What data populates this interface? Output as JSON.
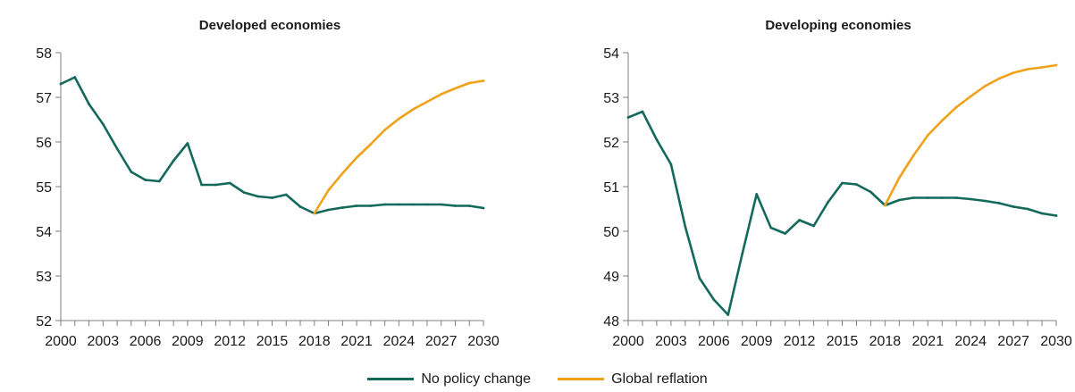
{
  "colors": {
    "no_policy_change": "#13695b",
    "global_reflation": "#f0a21b"
  },
  "legend": [
    {
      "key": "no_policy_change",
      "label": "No policy change"
    },
    {
      "key": "global_reflation",
      "label": "Global reflation"
    }
  ],
  "chart_data": [
    {
      "type": "line",
      "title": "Developed economies",
      "xlabel": "",
      "ylabel": "",
      "xlim": [
        2000,
        2030
      ],
      "ylim": [
        52,
        58
      ],
      "x_ticks": [
        2000,
        2003,
        2006,
        2009,
        2012,
        2015,
        2018,
        2021,
        2024,
        2027,
        2030
      ],
      "y_ticks": [
        52,
        53,
        54,
        55,
        56,
        57,
        58
      ],
      "grid": false,
      "legend_position": "bottom",
      "series": [
        {
          "name": "No policy change",
          "key": "no_policy_change",
          "x": [
            2000,
            2001,
            2002,
            2003,
            2004,
            2005,
            2006,
            2007,
            2008,
            2009,
            2010,
            2011,
            2012,
            2013,
            2014,
            2015,
            2016,
            2017,
            2018,
            2019,
            2020,
            2021,
            2022,
            2023,
            2024,
            2025,
            2026,
            2027,
            2028,
            2029,
            2030
          ],
          "values": [
            57.3,
            57.45,
            56.85,
            56.4,
            55.85,
            55.33,
            55.15,
            55.12,
            55.58,
            55.97,
            55.04,
            55.04,
            55.08,
            54.87,
            54.78,
            54.75,
            54.82,
            54.55,
            54.4,
            54.48,
            54.53,
            54.57,
            54.57,
            54.6,
            54.6,
            54.6,
            54.6,
            54.6,
            54.57,
            54.57,
            54.52
          ]
        },
        {
          "name": "Global reflation",
          "key": "global_reflation",
          "x": [
            2018,
            2019,
            2020,
            2021,
            2022,
            2023,
            2024,
            2025,
            2026,
            2027,
            2028,
            2029,
            2030
          ],
          "values": [
            54.4,
            54.92,
            55.3,
            55.65,
            55.95,
            56.27,
            56.52,
            56.73,
            56.9,
            57.07,
            57.2,
            57.32,
            57.37
          ]
        }
      ]
    },
    {
      "type": "line",
      "title": "Developing economies",
      "xlabel": "",
      "ylabel": "",
      "xlim": [
        2000,
        2030
      ],
      "ylim": [
        48,
        54
      ],
      "x_ticks": [
        2000,
        2003,
        2006,
        2009,
        2012,
        2015,
        2018,
        2021,
        2024,
        2027,
        2030
      ],
      "y_ticks": [
        48,
        49,
        50,
        51,
        52,
        53,
        54
      ],
      "grid": false,
      "legend_position": "bottom",
      "series": [
        {
          "name": "No policy change",
          "key": "no_policy_change",
          "x": [
            2000,
            2001,
            2002,
            2003,
            2004,
            2005,
            2006,
            2007,
            2008,
            2009,
            2010,
            2011,
            2012,
            2013,
            2014,
            2015,
            2016,
            2017,
            2018,
            2019,
            2020,
            2021,
            2022,
            2023,
            2024,
            2025,
            2026,
            2027,
            2028,
            2029,
            2030
          ],
          "values": [
            52.55,
            52.68,
            52.05,
            51.5,
            50.1,
            48.95,
            48.47,
            48.13,
            49.5,
            50.83,
            50.08,
            49.95,
            50.25,
            50.12,
            50.65,
            51.08,
            51.05,
            50.88,
            50.58,
            50.7,
            50.75,
            50.75,
            50.75,
            50.75,
            50.72,
            50.68,
            50.63,
            50.55,
            50.5,
            50.4,
            50.35
          ]
        },
        {
          "name": "Global reflation",
          "key": "global_reflation",
          "x": [
            2018,
            2019,
            2020,
            2021,
            2022,
            2023,
            2024,
            2025,
            2026,
            2027,
            2028,
            2029,
            2030
          ],
          "values": [
            50.58,
            51.2,
            51.7,
            52.15,
            52.48,
            52.78,
            53.02,
            53.25,
            53.42,
            53.55,
            53.63,
            53.67,
            53.72
          ]
        }
      ]
    }
  ]
}
